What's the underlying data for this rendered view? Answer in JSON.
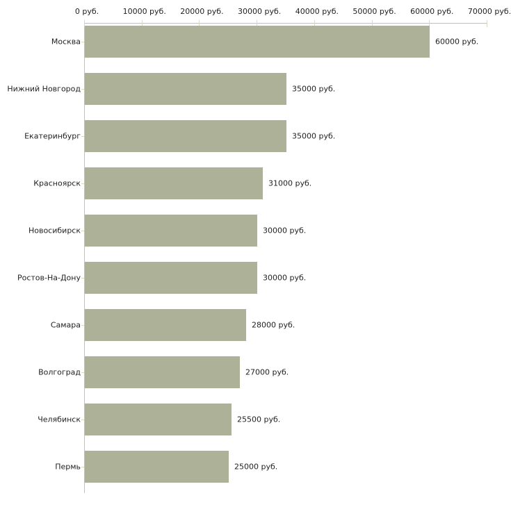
{
  "chart_data": {
    "type": "bar",
    "orientation": "horizontal",
    "title": "",
    "xlabel": "",
    "ylabel": "",
    "unit": "руб.",
    "categories": [
      "Москва",
      "Нижний Новгород",
      "Екатеринбург",
      "Красноярск",
      "Новосибирск",
      "Ростов-На-Дону",
      "Самара",
      "Волгоград",
      "Челябинск",
      "Пермь"
    ],
    "values": [
      60000,
      35000,
      35000,
      31000,
      30000,
      30000,
      28000,
      27000,
      25500,
      25000
    ],
    "value_labels": [
      "60000 руб.",
      "35000 руб.",
      "35000 руб.",
      "31000 руб.",
      "30000 руб.",
      "30000 руб.",
      "28000 руб.",
      "27000 руб.",
      "25500 руб.",
      "25000 руб."
    ],
    "x_tick_values": [
      0,
      10000,
      20000,
      30000,
      40000,
      50000,
      60000,
      70000
    ],
    "x_tick_labels": [
      "0 руб.",
      "10000 руб.",
      "20000 руб.",
      "30000 руб.",
      "40000 руб.",
      "50000 руб.",
      "60000 руб.",
      "70000 руб."
    ],
    "xlim": [
      0,
      70000
    ],
    "grid": false,
    "legend": false,
    "colors": {
      "bar": "#acb197",
      "axis_line": "#c0c0c0",
      "tick_mark": "#d8dabd",
      "text": "#222222",
      "background": "#ffffff"
    }
  }
}
